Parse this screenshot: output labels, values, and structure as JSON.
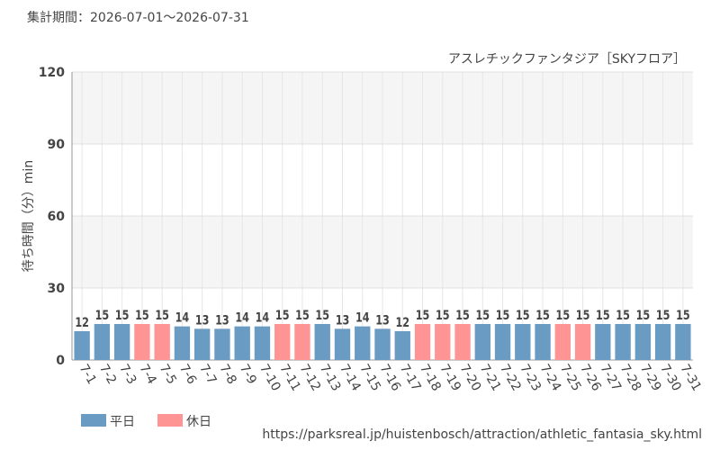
{
  "chart_data": {
    "type": "bar",
    "subtitle": "集計期間：2026-07-01〜2026-07-31",
    "title": "アスレチックファンタジア［SKYフロア］",
    "y_label": "待ち時間（分）min",
    "source": "https://parksreal.jp/huistenbosch/attraction/athletic_fantasia_sky.html",
    "categories": [
      "7-1",
      "7-2",
      "7-3",
      "7-4",
      "7-5",
      "7-6",
      "7-7",
      "7-8",
      "7-9",
      "7-10",
      "7-11",
      "7-12",
      "7-13",
      "7-14",
      "7-15",
      "7-16",
      "7-17",
      "7-18",
      "7-19",
      "7-20",
      "7-21",
      "7-22",
      "7-23",
      "7-24",
      "7-25",
      "7-26",
      "7-27",
      "7-28",
      "7-29",
      "7-30",
      "7-31"
    ],
    "series": [
      {
        "name": "平日",
        "color": "#6a9bc3",
        "values": [
          12,
          15,
          15,
          null,
          null,
          14,
          13,
          13,
          14,
          14,
          null,
          null,
          15,
          13,
          14,
          13,
          12,
          null,
          null,
          null,
          15,
          15,
          15,
          15,
          null,
          null,
          15,
          15,
          15,
          15,
          15
        ]
      },
      {
        "name": "休日",
        "color": "#ff9494",
        "values": [
          null,
          null,
          null,
          15,
          15,
          null,
          null,
          null,
          null,
          null,
          15,
          15,
          null,
          null,
          null,
          null,
          null,
          15,
          15,
          15,
          null,
          null,
          null,
          null,
          15,
          15,
          null,
          null,
          null,
          null,
          null
        ]
      }
    ],
    "ylim": [
      0,
      120
    ],
    "yticks": [
      0,
      30,
      60,
      90,
      120
    ],
    "grid": true
  }
}
